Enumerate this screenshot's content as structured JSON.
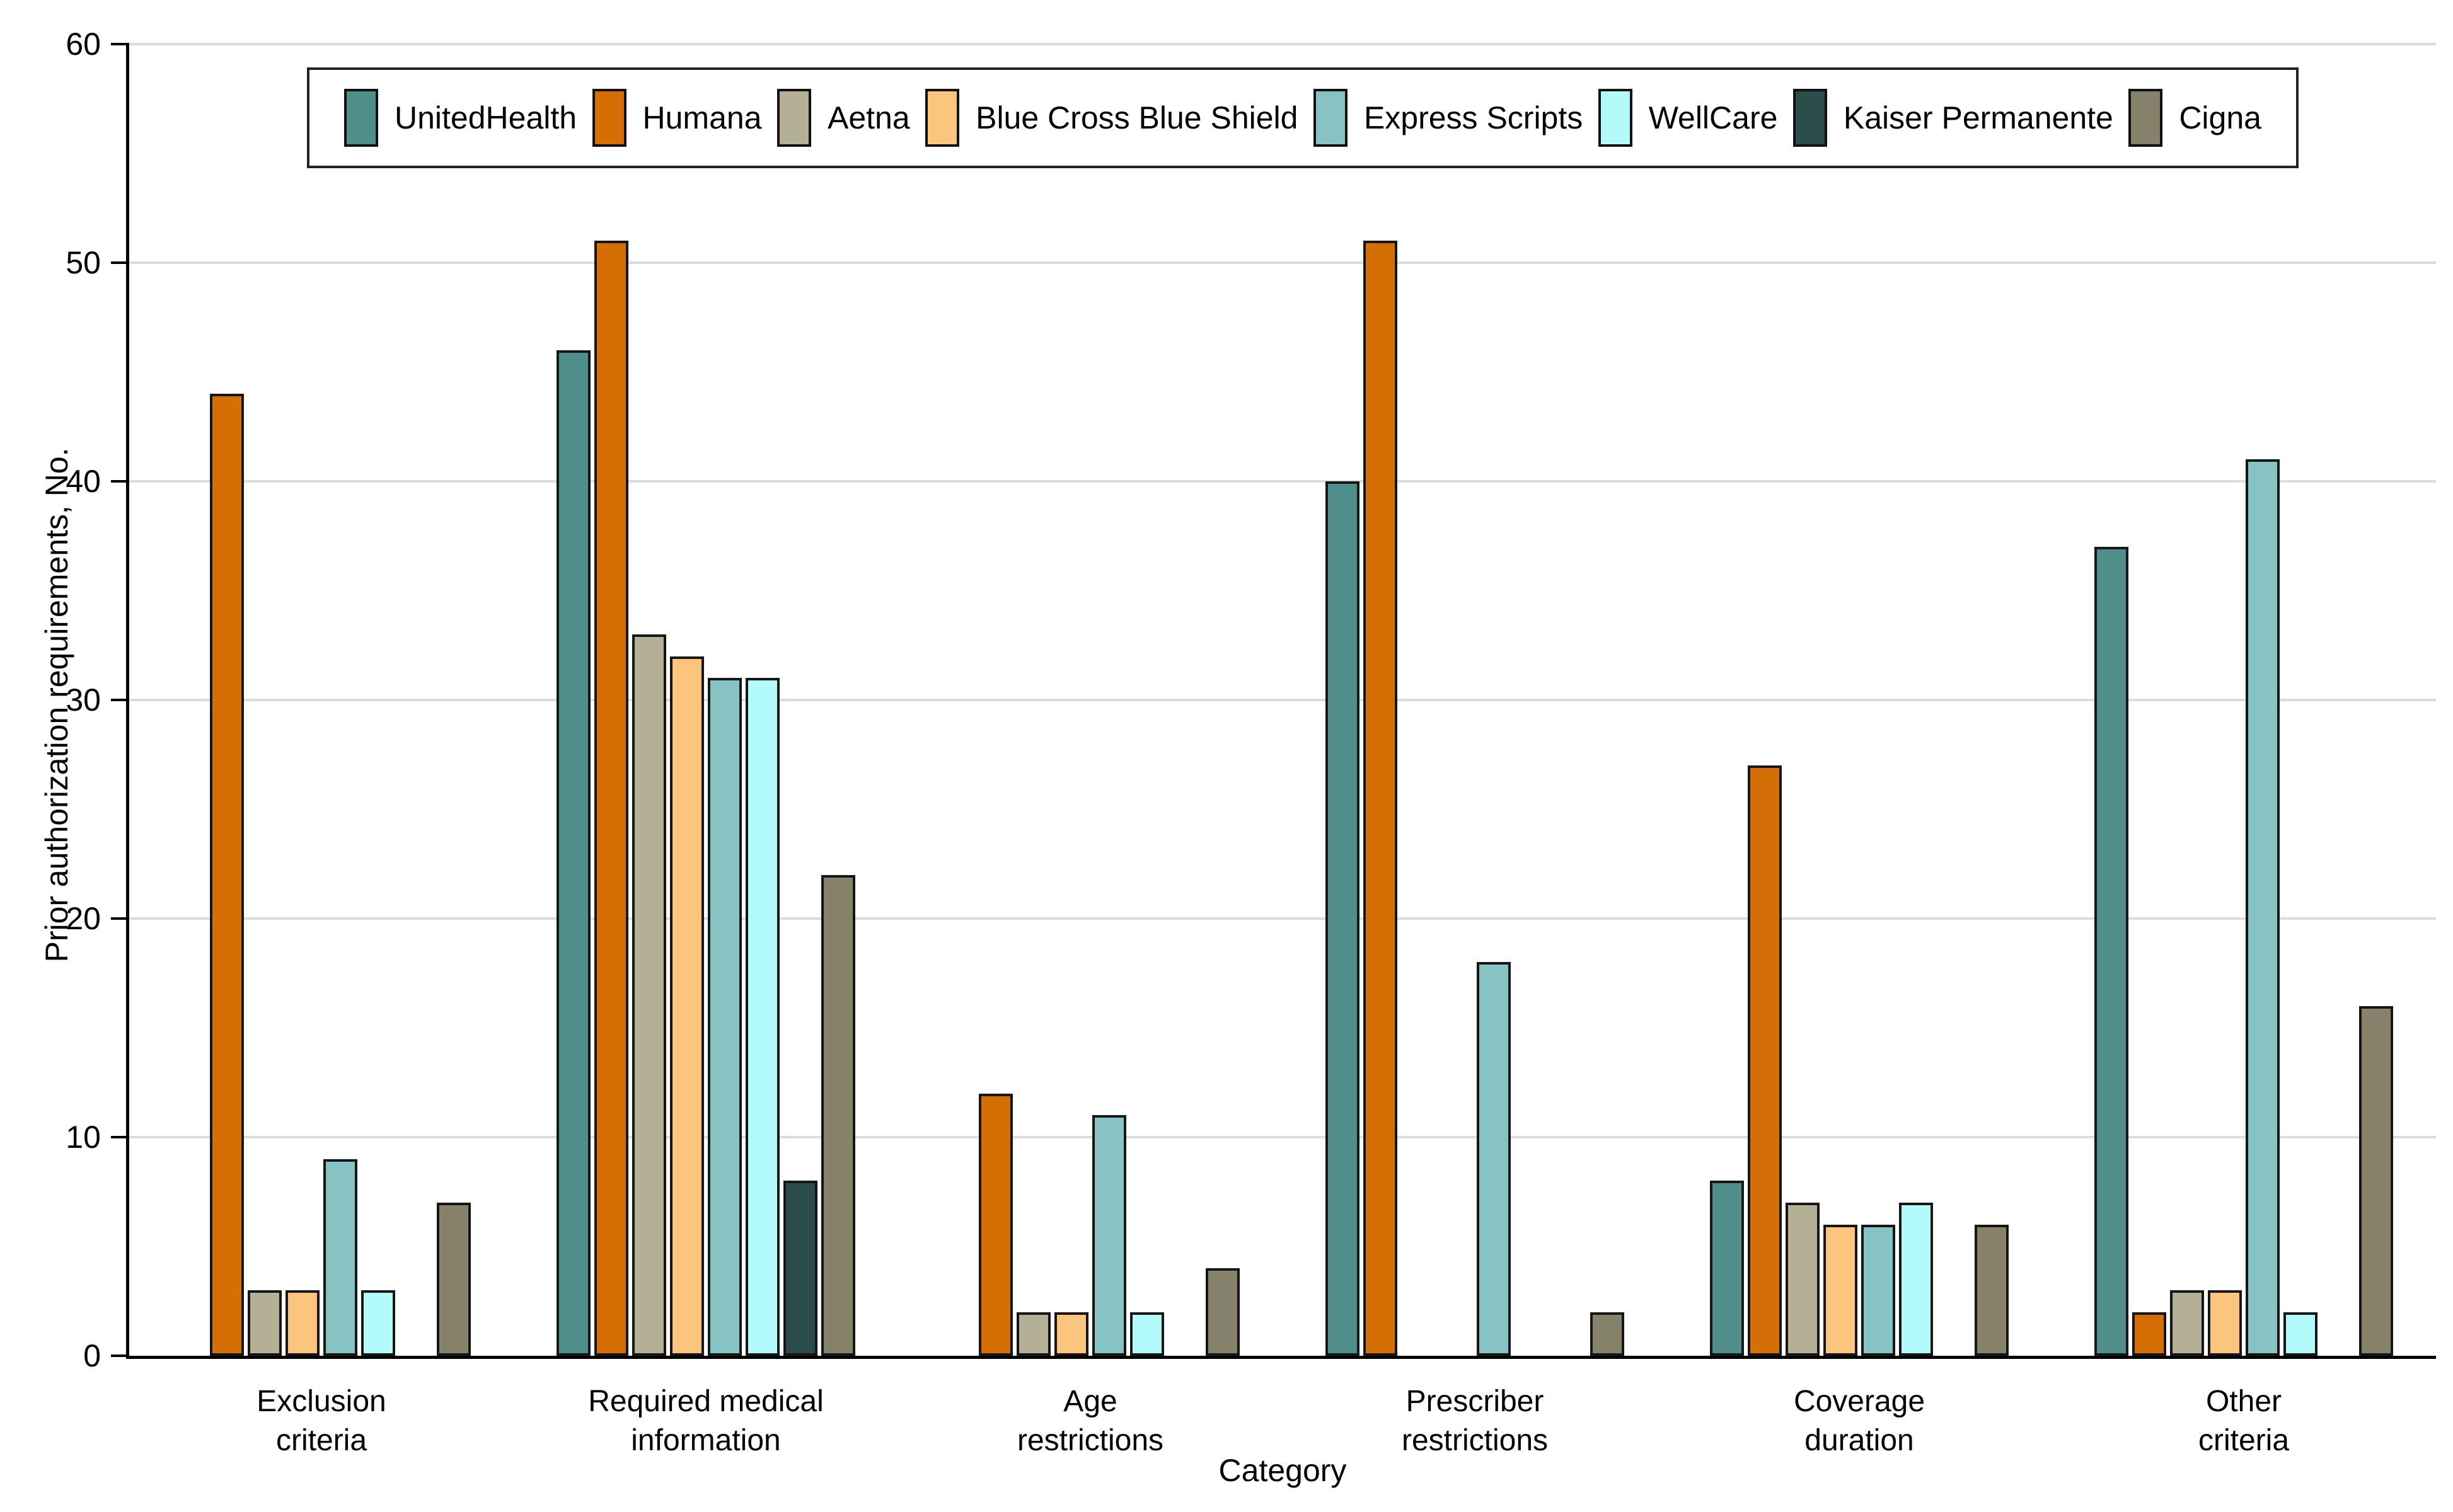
{
  "chart_data": {
    "type": "bar",
    "title": "",
    "xlabel": "Category",
    "ylabel": "Prior authorization requirements, No.",
    "ylim": [
      0,
      60
    ],
    "yticks": [
      0,
      10,
      20,
      30,
      40,
      50,
      60
    ],
    "grid": "horizontal",
    "legend_position": "top",
    "categories": [
      "Exclusion\ncriteria",
      "Required medical\ninformation",
      "Age\nrestrictions",
      "Prescriber\nrestrictions",
      "Coverage\nduration",
      "Other\ncriteria"
    ],
    "series": [
      {
        "name": "UnitedHealth",
        "color": "#4f8e8b",
        "values": [
          0,
          46,
          0,
          40,
          8,
          37
        ]
      },
      {
        "name": "Humana",
        "color": "#d46e05",
        "values": [
          44,
          51,
          12,
          51,
          27,
          2
        ]
      },
      {
        "name": "Aetna",
        "color": "#b3b096",
        "values": [
          3,
          33,
          2,
          0,
          7,
          3
        ]
      },
      {
        "name": "Blue Cross Blue Shield",
        "color": "#fcc57d",
        "values": [
          3,
          32,
          2,
          0,
          6,
          3
        ]
      },
      {
        "name": "Express Scripts",
        "color": "#86c3c2",
        "values": [
          9,
          31,
          11,
          18,
          6,
          41
        ]
      },
      {
        "name": "WellCare",
        "color": "#b3fafa",
        "values": [
          3,
          31,
          2,
          0,
          7,
          2
        ]
      },
      {
        "name": "Kaiser Permanente",
        "color": "#2a4d4b",
        "values": [
          0,
          8,
          0,
          0,
          0,
          0
        ]
      },
      {
        "name": "Cigna",
        "color": "#85816b",
        "values": [
          7,
          22,
          4,
          2,
          6,
          16
        ]
      }
    ],
    "colors": {
      "axis": "#000000",
      "grid": "#dcdcdc",
      "bar_outline": "#161616"
    }
  }
}
